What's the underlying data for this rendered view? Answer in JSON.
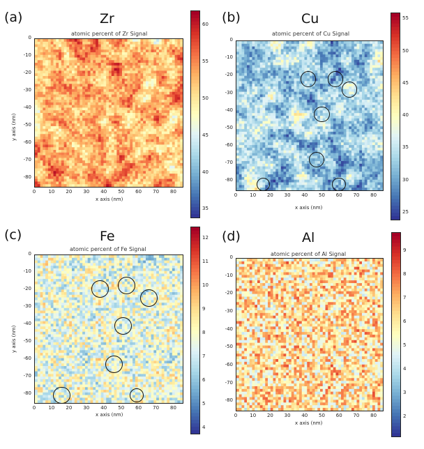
{
  "chart_data": [
    {
      "type": "heatmap",
      "panel_label": "(a)",
      "element": "Zr",
      "title": "atomic percent of Zr Signal",
      "xlabel": "x axis (nm)",
      "ylabel": "y axis (nm)",
      "xlim": [
        0,
        85
      ],
      "ylim": [
        -85,
        0
      ],
      "x_ticks": [
        "0",
        "10",
        "20",
        "30",
        "40",
        "50",
        "60",
        "70",
        "80"
      ],
      "y_ticks": [
        "0",
        "-10",
        "-20",
        "-30",
        "-40",
        "-50",
        "-60",
        "-70",
        "-80"
      ],
      "colorbar_ticks": [
        "60",
        "55",
        "50",
        "45",
        "40",
        "35"
      ],
      "color_range": [
        34,
        62
      ],
      "grid_size": 56,
      "approx_mean": 53,
      "circles": []
    },
    {
      "type": "heatmap",
      "panel_label": "(b)",
      "element": "Cu",
      "title": "atomic percent of Cu Signal",
      "xlabel": "x axis (nm)",
      "ylabel": "",
      "xlim": [
        0,
        85
      ],
      "ylim": [
        -85,
        0
      ],
      "x_ticks": [
        "0",
        "10",
        "20",
        "30",
        "40",
        "50",
        "60",
        "70",
        "80"
      ],
      "y_ticks": [
        "0",
        "-10",
        "-20",
        "-30",
        "-40",
        "-50",
        "-60",
        "-70",
        "-80"
      ],
      "colorbar_ticks": [
        "55",
        "50",
        "45",
        "40",
        "35",
        "30",
        "25"
      ],
      "color_range": [
        24,
        56
      ],
      "grid_size": 56,
      "approx_mean": 33,
      "circles": [
        {
          "x": 42,
          "y": -22,
          "r": 4.5
        },
        {
          "x": 58,
          "y": -22,
          "r": 4.5
        },
        {
          "x": 66,
          "y": -28,
          "r": 4.5
        },
        {
          "x": 50,
          "y": -42,
          "r": 4.5
        },
        {
          "x": 47,
          "y": -68,
          "r": 4.5
        },
        {
          "x": 16,
          "y": -82,
          "r": 4
        },
        {
          "x": 60,
          "y": -82,
          "r": 4
        }
      ]
    },
    {
      "type": "heatmap",
      "panel_label": "(c)",
      "element": "Fe",
      "title": "atomic percent of Fe Signal",
      "xlabel": "x axis (nm)",
      "ylabel": "y axis (nm)",
      "xlim": [
        0,
        85
      ],
      "ylim": [
        -85,
        0
      ],
      "x_ticks": [
        "0",
        "10",
        "20",
        "30",
        "40",
        "50",
        "60",
        "70",
        "80"
      ],
      "y_ticks": [
        "0",
        "-10",
        "-20",
        "-30",
        "-40",
        "-50",
        "-60",
        "-70",
        "-80"
      ],
      "colorbar_ticks": [
        "12",
        "11",
        "10",
        "9",
        "8",
        "7",
        "6",
        "5",
        "4"
      ],
      "color_range": [
        3.8,
        12.5
      ],
      "grid_size": 56,
      "approx_mean": 7.6,
      "circles": [
        {
          "x": 38,
          "y": -20,
          "r": 5
        },
        {
          "x": 53,
          "y": -18,
          "r": 5
        },
        {
          "x": 66,
          "y": -25,
          "r": 5
        },
        {
          "x": 51,
          "y": -41,
          "r": 5
        },
        {
          "x": 46,
          "y": -63,
          "r": 5
        },
        {
          "x": 16,
          "y": -81,
          "r": 5
        },
        {
          "x": 59,
          "y": -81,
          "r": 4
        }
      ]
    },
    {
      "type": "heatmap",
      "panel_label": "(d)",
      "element": "Al",
      "title": "atomic percent of Al Signal",
      "xlabel": "x axis (nm)",
      "ylabel": "",
      "xlim": [
        0,
        85
      ],
      "ylim": [
        -85,
        0
      ],
      "x_ticks": [
        "0",
        "10",
        "20",
        "30",
        "40",
        "50",
        "60",
        "70",
        "80"
      ],
      "y_ticks": [
        "0",
        "-10",
        "-20",
        "-30",
        "-40",
        "-50",
        "-60",
        "-70",
        "-80"
      ],
      "colorbar_ticks": [
        "9",
        "8",
        "7",
        "6",
        "5",
        "4",
        "3",
        "2"
      ],
      "color_range": [
        1.2,
        9.8
      ],
      "grid_size": 56,
      "approx_mean": 6.2,
      "circles": []
    }
  ]
}
